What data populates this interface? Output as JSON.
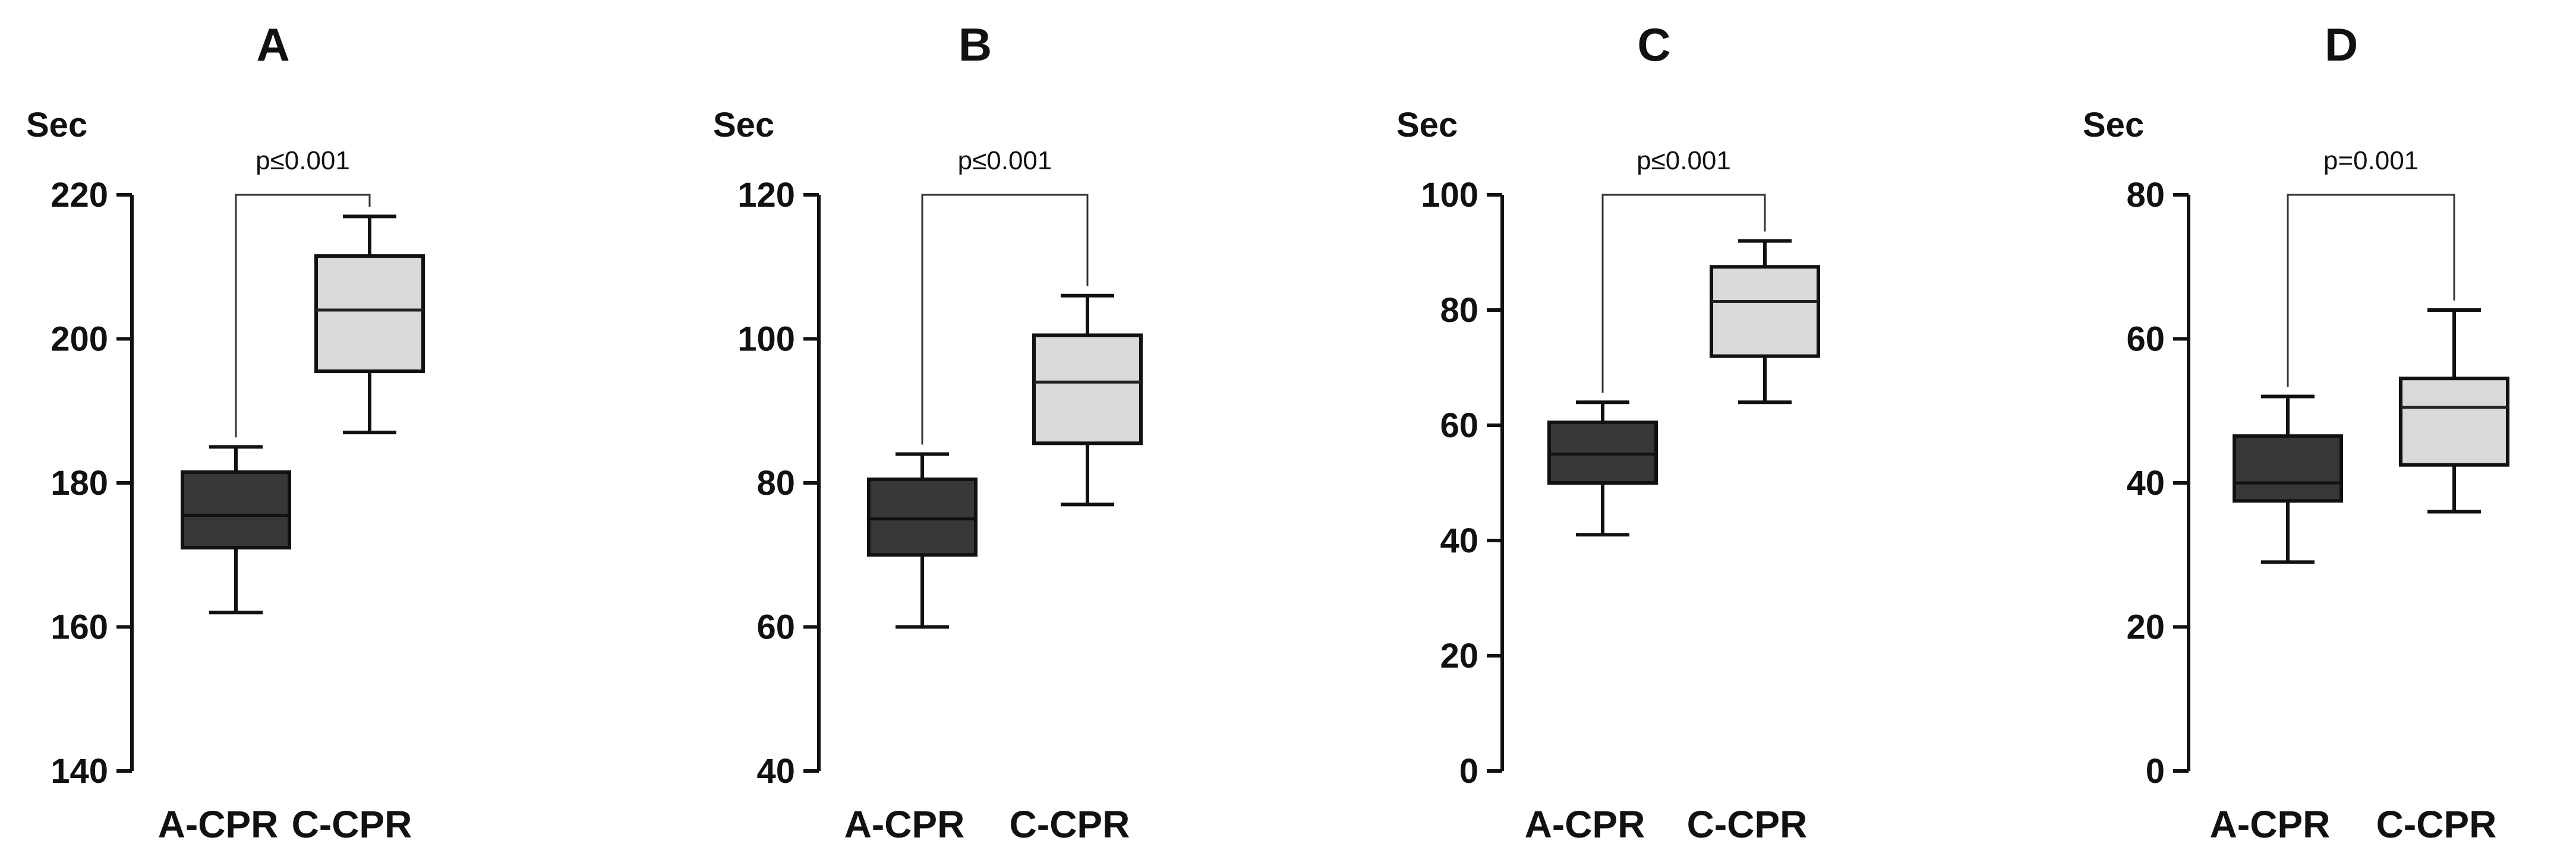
{
  "chart_data": [
    {
      "type": "box",
      "title": "A",
      "ylabel": "Sec",
      "xlabel": "",
      "ylim": [
        140,
        220
      ],
      "yticks": [
        140,
        160,
        180,
        200,
        220
      ],
      "categories": [
        "A-CPR",
        "C-CPR"
      ],
      "boxes": [
        {
          "name": "A-CPR",
          "min": 162,
          "q1": 171,
          "median": 175.5,
          "q3": 181.5,
          "max": 185,
          "color": "#383838"
        },
        {
          "name": "C-CPR",
          "min": 187,
          "q1": 195.5,
          "median": 204,
          "q3": 211.5,
          "max": 217,
          "color": "#d9d9d9"
        }
      ],
      "annotation": {
        "text": "p≤0.001"
      }
    },
    {
      "type": "box",
      "title": "B",
      "ylabel": "Sec",
      "xlabel": "",
      "ylim": [
        40,
        120
      ],
      "yticks": [
        40,
        60,
        80,
        100,
        120
      ],
      "categories": [
        "A-CPR",
        "C-CPR"
      ],
      "boxes": [
        {
          "name": "A-CPR",
          "min": 60,
          "q1": 70,
          "median": 75,
          "q3": 80.5,
          "max": 84,
          "color": "#383838"
        },
        {
          "name": "C-CPR",
          "min": 77,
          "q1": 85.5,
          "median": 94,
          "q3": 100.5,
          "max": 106,
          "color": "#d9d9d9"
        }
      ],
      "annotation": {
        "text": "p≤0.001"
      }
    },
    {
      "type": "box",
      "title": "C",
      "ylabel": "Sec",
      "xlabel": "",
      "ylim": [
        0,
        100
      ],
      "yticks": [
        0,
        20,
        40,
        60,
        80,
        100
      ],
      "categories": [
        "A-CPR",
        "C-CPR"
      ],
      "boxes": [
        {
          "name": "A-CPR",
          "min": 41,
          "q1": 50,
          "median": 55,
          "q3": 60.5,
          "max": 64,
          "color": "#383838"
        },
        {
          "name": "C-CPR",
          "min": 64,
          "q1": 72,
          "median": 81.5,
          "q3": 87.5,
          "max": 92,
          "color": "#d9d9d9"
        }
      ],
      "annotation": {
        "text": "p≤0.001"
      }
    },
    {
      "type": "box",
      "title": "D",
      "ylabel": "Sec",
      "xlabel": "",
      "ylim": [
        0,
        80
      ],
      "yticks": [
        0,
        20,
        40,
        60,
        80
      ],
      "categories": [
        "A-CPR",
        "C-CPR"
      ],
      "boxes": [
        {
          "name": "A-CPR",
          "min": 29,
          "q1": 37.5,
          "median": 40,
          "q3": 46.5,
          "max": 52,
          "color": "#383838"
        },
        {
          "name": "C-CPR",
          "min": 36,
          "q1": 42.5,
          "median": 50.5,
          "q3": 54.5,
          "max": 64,
          "color": "#d9d9d9"
        }
      ],
      "annotation": {
        "text": "p=0.001"
      }
    }
  ]
}
